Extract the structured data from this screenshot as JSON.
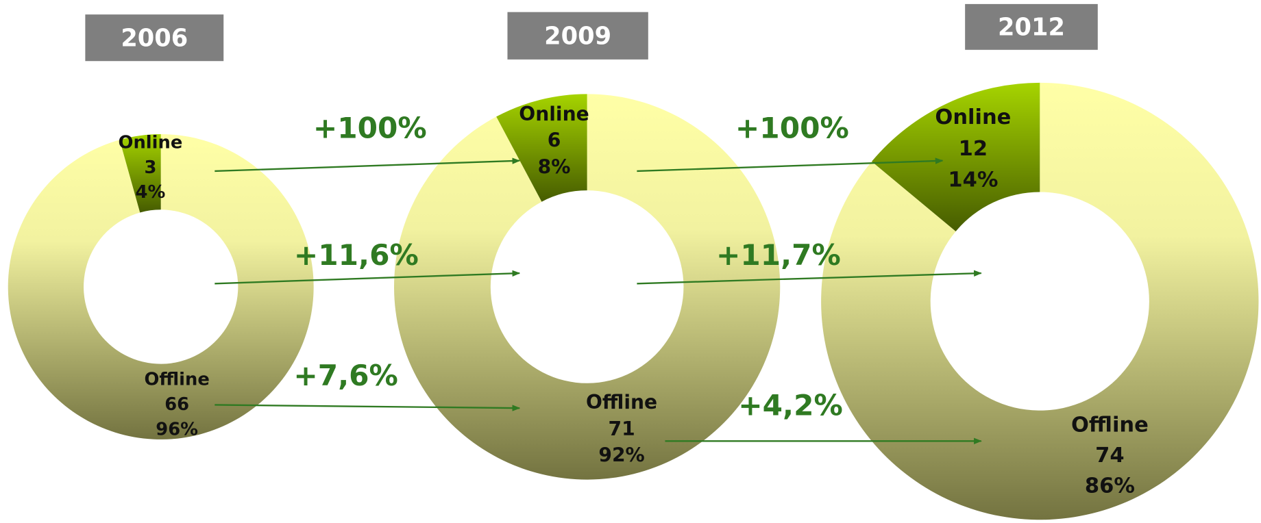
{
  "chart_data": [
    {
      "type": "donut",
      "title": "2006",
      "categories": [
        "Online",
        "Offline"
      ],
      "values": [
        3,
        66
      ],
      "share_labels": [
        "4%",
        "96%"
      ]
    },
    {
      "type": "donut",
      "title": "2009",
      "categories": [
        "Online",
        "Offline"
      ],
      "values": [
        6,
        71
      ],
      "share_labels": [
        "8%",
        "92%"
      ]
    },
    {
      "type": "donut",
      "title": "2012",
      "categories": [
        "Online",
        "Offline"
      ],
      "values": [
        12,
        74
      ],
      "share_labels": [
        "14%",
        "86%"
      ]
    }
  ],
  "growth_labels": [
    "+100%",
    "+11,6%",
    "+7,6%",
    "+100%",
    "+11,7%",
    "+4,2%"
  ]
}
